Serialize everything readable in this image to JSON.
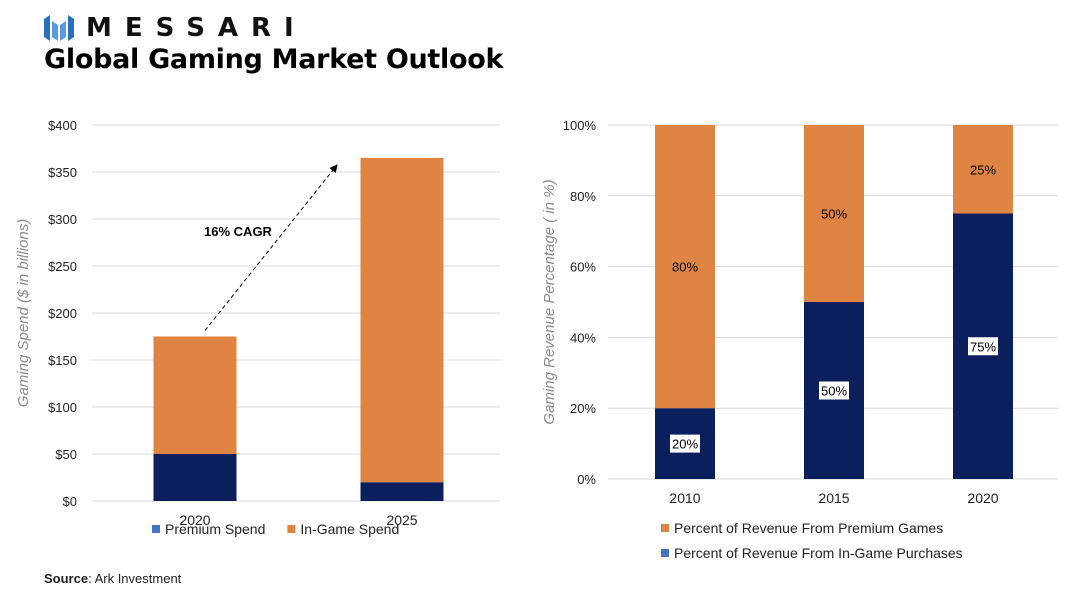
{
  "brand": {
    "name": "MESSARI",
    "color": "#2a6fbd"
  },
  "title": "Global Gaming Market Outlook",
  "source": {
    "label": "Source",
    "text": ": Ark Investment"
  },
  "colors": {
    "navy": "#0b1f5c",
    "orange": "#e08443",
    "legend_blue": "#4472c4"
  },
  "chart_data": [
    {
      "type": "bar",
      "stacked": true,
      "categories": [
        "2020",
        "2025"
      ],
      "series": [
        {
          "name": "Premium Spend",
          "values": [
            50,
            20
          ],
          "color": "#0b1f5c",
          "legend_color": "#4472c4"
        },
        {
          "name": "In-Game Spend",
          "values": [
            125,
            345
          ],
          "color": "#e08443",
          "legend_color": "#e08443"
        }
      ],
      "ylabel": "Gaming Spend ($ in billions)",
      "ylim": [
        0,
        400
      ],
      "yticks": [
        0,
        50,
        100,
        150,
        200,
        250,
        300,
        350,
        400
      ],
      "ytick_labels": [
        "$0",
        "$50",
        "$100",
        "$150",
        "$200",
        "$250",
        "$300",
        "$350",
        "$400"
      ],
      "annotation": {
        "text": "16% CAGR",
        "arrow_from": {
          "category": "2020",
          "value": 175
        },
        "arrow_to": {
          "category": "2025",
          "value": 350
        }
      },
      "grid": true,
      "legend": "bottom"
    },
    {
      "type": "bar",
      "stacked": true,
      "categories": [
        "2010",
        "2015",
        "2020"
      ],
      "series": [
        {
          "name": "Percent of Revenue From In-Game Purchases",
          "values": [
            20,
            50,
            75
          ],
          "labels": [
            "20%",
            "50%",
            "75%"
          ],
          "color": "#0b1f5c",
          "legend_color": "#4472c4"
        },
        {
          "name": "Percent of Revenue From Premium Games",
          "values": [
            80,
            50,
            25
          ],
          "labels": [
            "80%",
            "50%",
            "25%"
          ],
          "color": "#e08443",
          "legend_color": "#e08443"
        }
      ],
      "ylabel": "Gaming Revenue Percentage ( in %)",
      "ylim": [
        0,
        100
      ],
      "yticks": [
        0,
        20,
        40,
        60,
        80,
        100
      ],
      "ytick_labels": [
        "0%",
        "20%",
        "40%",
        "60%",
        "80%",
        "100%"
      ],
      "legend_order": [
        "Percent of Revenue From Premium Games",
        "Percent of Revenue From In-Game Purchases"
      ],
      "grid": true,
      "legend": "bottom"
    }
  ]
}
